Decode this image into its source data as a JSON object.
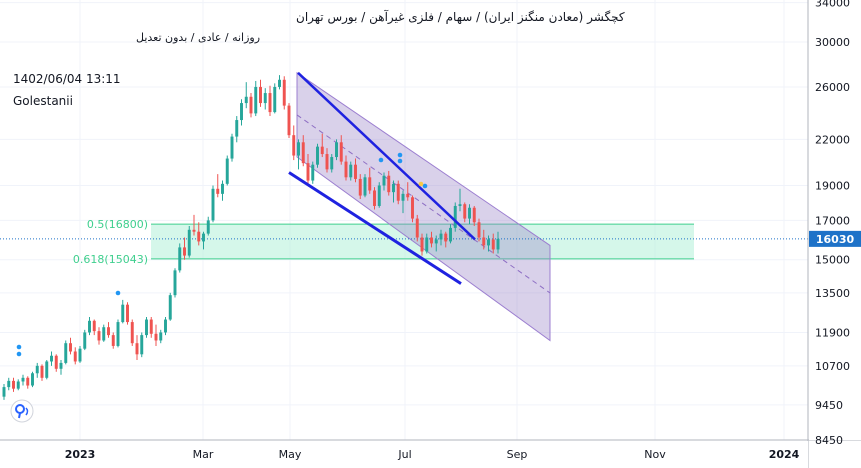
{
  "header": {
    "symbol_line": "کچگشر (معادن منگنز ایران) / سهام / فلزی غیرآهن / بورس تهران",
    "interval_line": "روزانه / عادی / بدون تعدیل",
    "timestamp": "1402/06/04 13:11",
    "author": "Golestanii"
  },
  "colors": {
    "up": "#26a69a",
    "down": "#ef5350",
    "channel_fill": "#9c86c9",
    "trendline": "#1f22e0",
    "fib_zone": "#b2f0d8",
    "fib_text": "#3fcf8e",
    "price_tag": "#1e72c8"
  },
  "logo_icon": "tradingview-logo-icon",
  "chart_data": {
    "type": "candlestick",
    "y_axis": {
      "scale": "log",
      "ticks": [
        "34000",
        "30000",
        "26000",
        "22000",
        "19000",
        "17000",
        "15000",
        "13500",
        "11900",
        "10700",
        "9450",
        "8450"
      ]
    },
    "x_axis": {
      "ticks": [
        "2023",
        "Mar",
        "May",
        "Jul",
        "Sep",
        "Nov",
        "2024"
      ]
    },
    "last_price": "16030",
    "fib_levels": [
      {
        "label": "0.5(16800)",
        "value": 16800
      },
      {
        "label": "0.618(15043)",
        "value": 15043
      }
    ],
    "channel": {
      "upper_start": 27200,
      "upper_end": 15700,
      "lower_start": 20800,
      "lower_end": 11600
    },
    "trendline_upper": {
      "start": 27200,
      "end": 16000
    },
    "trendline_lower": {
      "start": 19800,
      "end": 13900
    },
    "candles": [
      [
        9700,
        10100,
        9600,
        10000
      ],
      [
        10000,
        10300,
        9900,
        10200
      ],
      [
        10200,
        10300,
        9850,
        9950
      ],
      [
        9950,
        10250,
        9900,
        10180
      ],
      [
        10180,
        10400,
        10050,
        10300
      ],
      [
        10300,
        10350,
        9950,
        10050
      ],
      [
        10050,
        10500,
        10000,
        10450
      ],
      [
        10450,
        10800,
        10300,
        10700
      ],
      [
        10700,
        10750,
        10200,
        10300
      ],
      [
        10300,
        10900,
        10250,
        10850
      ],
      [
        10850,
        11200,
        10700,
        11050
      ],
      [
        11050,
        11100,
        10500,
        10600
      ],
      [
        10600,
        10900,
        10400,
        10800
      ],
      [
        10800,
        11600,
        10750,
        11500
      ],
      [
        11500,
        11700,
        11100,
        11200
      ],
      [
        11200,
        11350,
        10750,
        10850
      ],
      [
        10850,
        11400,
        10800,
        11300
      ],
      [
        11300,
        12000,
        11250,
        11900
      ],
      [
        11900,
        12500,
        11800,
        12350
      ],
      [
        12350,
        12400,
        11800,
        11950
      ],
      [
        11950,
        12100,
        11450,
        11600
      ],
      [
        11600,
        12200,
        11550,
        12100
      ],
      [
        12100,
        12300,
        11700,
        11800
      ],
      [
        11800,
        11900,
        11300,
        11400
      ],
      [
        11400,
        12400,
        11350,
        12300
      ],
      [
        12300,
        13200,
        12250,
        13000
      ],
      [
        13000,
        13100,
        12200,
        12300
      ],
      [
        12300,
        12400,
        11400,
        11500
      ],
      [
        11500,
        11800,
        10900,
        11100
      ],
      [
        11100,
        11900,
        11000,
        11800
      ],
      [
        11800,
        12500,
        11700,
        12400
      ],
      [
        12400,
        12500,
        11700,
        11850
      ],
      [
        11850,
        12200,
        11400,
        11600
      ],
      [
        11600,
        12000,
        11500,
        11900
      ],
      [
        11900,
        12500,
        11800,
        12400
      ],
      [
        12400,
        13500,
        12350,
        13400
      ],
      [
        13400,
        14600,
        13300,
        14500
      ],
      [
        14500,
        15800,
        14400,
        15600
      ],
      [
        15600,
        16100,
        15000,
        15200
      ],
      [
        15200,
        16700,
        15100,
        16500
      ],
      [
        16500,
        17300,
        16200,
        16400
      ],
      [
        16400,
        16900,
        15700,
        15900
      ],
      [
        15900,
        16400,
        15500,
        16300
      ],
      [
        16300,
        17200,
        16200,
        17000
      ],
      [
        17000,
        19000,
        16900,
        18800
      ],
      [
        18800,
        19700,
        18300,
        18500
      ],
      [
        18500,
        19300,
        18100,
        19100
      ],
      [
        19100,
        20900,
        19000,
        20700
      ],
      [
        20700,
        22400,
        20500,
        22200
      ],
      [
        22200,
        23700,
        21800,
        23400
      ],
      [
        23400,
        25000,
        23000,
        24700
      ],
      [
        24700,
        26400,
        24300,
        25200
      ],
      [
        25200,
        25500,
        23600,
        23900
      ],
      [
        23900,
        26500,
        23700,
        26000
      ],
      [
        26000,
        26600,
        24400,
        24700
      ],
      [
        24700,
        25900,
        24200,
        25500
      ],
      [
        25500,
        26100,
        23700,
        24000
      ],
      [
        24000,
        26300,
        23900,
        26000
      ],
      [
        26000,
        27000,
        25800,
        26600
      ],
      [
        26600,
        26900,
        24200,
        24500
      ],
      [
        24500,
        24700,
        22100,
        22300
      ],
      [
        22300,
        23000,
        20600,
        20900
      ],
      [
        20900,
        22000,
        20000,
        21800
      ],
      [
        21800,
        22300,
        20200,
        20400
      ],
      [
        20400,
        21000,
        19000,
        19300
      ],
      [
        19300,
        20500,
        19100,
        20300
      ],
      [
        20300,
        21700,
        20100,
        21500
      ],
      [
        21500,
        22400,
        20800,
        21000
      ],
      [
        21000,
        21400,
        19800,
        20000
      ],
      [
        20000,
        21000,
        19800,
        20800
      ],
      [
        20800,
        22000,
        20600,
        21800
      ],
      [
        21800,
        22300,
        20300,
        20500
      ],
      [
        20500,
        20900,
        19300,
        19500
      ],
      [
        19500,
        20500,
        19300,
        20300
      ],
      [
        20300,
        20700,
        19200,
        19400
      ],
      [
        19400,
        19700,
        18200,
        18400
      ],
      [
        18400,
        19700,
        18300,
        19500
      ],
      [
        19500,
        20100,
        18500,
        18700
      ],
      [
        18700,
        18900,
        17600,
        17800
      ],
      [
        17800,
        19200,
        17700,
        19000
      ],
      [
        19000,
        19800,
        18700,
        19600
      ],
      [
        19600,
        19900,
        18400,
        18600
      ],
      [
        18600,
        19300,
        18000,
        19100
      ],
      [
        19100,
        19300,
        17900,
        18100
      ],
      [
        18100,
        18700,
        17400,
        18500
      ],
      [
        18500,
        19200,
        18100,
        18300
      ],
      [
        18300,
        18400,
        16900,
        17100
      ],
      [
        17100,
        17300,
        15900,
        16100
      ],
      [
        16100,
        16300,
        15200,
        15400
      ],
      [
        15400,
        16300,
        15300,
        16100
      ],
      [
        16100,
        16400,
        15600,
        15800
      ],
      [
        15800,
        16200,
        15400,
        16000
      ],
      [
        16000,
        16500,
        15700,
        16300
      ],
      [
        16300,
        16400,
        15600,
        15900
      ],
      [
        15900,
        16800,
        15800,
        16600
      ],
      [
        16600,
        18000,
        16400,
        17800
      ],
      [
        17800,
        18800,
        17500,
        17900
      ],
      [
        17900,
        18000,
        16900,
        17100
      ],
      [
        17100,
        17900,
        16800,
        17700
      ],
      [
        17700,
        17800,
        16700,
        16900
      ],
      [
        16900,
        17100,
        15900,
        16100
      ],
      [
        16100,
        16500,
        15500,
        15700
      ],
      [
        15700,
        16200,
        15400,
        16000
      ],
      [
        16000,
        16300,
        15300,
        15500
      ],
      [
        15500,
        16400,
        15300,
        16030
      ]
    ]
  }
}
